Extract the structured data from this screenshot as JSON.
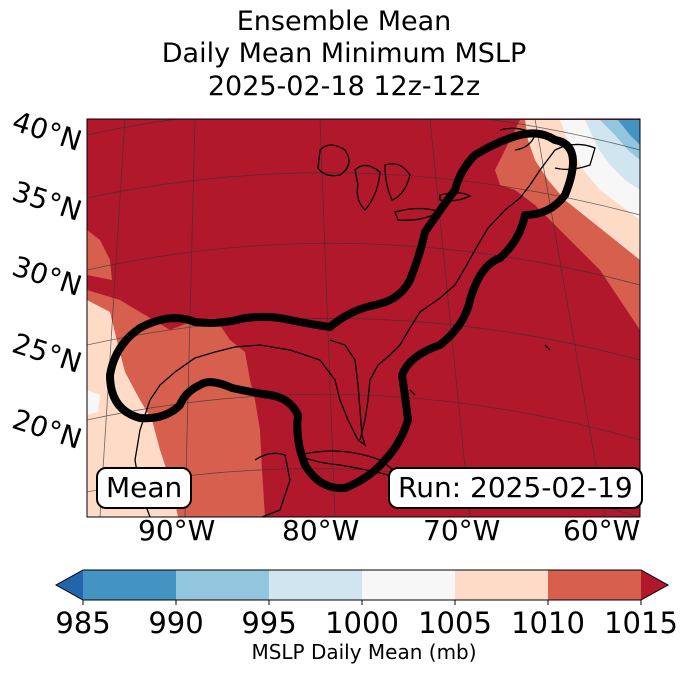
{
  "title": {
    "line1": "Ensemble Mean",
    "line2": "Daily Mean Minimum MSLP",
    "line3": "2025-02-18 12z-12z"
  },
  "map": {
    "lat_labels": [
      "40°N",
      "35°N",
      "30°N",
      "25°N",
      "20°N"
    ],
    "lon_labels": [
      "90°W",
      "80°W",
      "70°W",
      "60°W"
    ],
    "mean_label": "Mean",
    "run_label": "Run: 2025-02-19"
  },
  "colorbar": {
    "ticks": [
      "985",
      "990",
      "995",
      "1000",
      "1005",
      "1010",
      "1015"
    ],
    "label": "MSLP Daily Mean (mb)",
    "colors": [
      "#2166ac",
      "#4393c3",
      "#92c5de",
      "#d1e5f0",
      "#f7f7f7",
      "#fddbc7",
      "#d6604d",
      "#b2182b"
    ]
  }
}
